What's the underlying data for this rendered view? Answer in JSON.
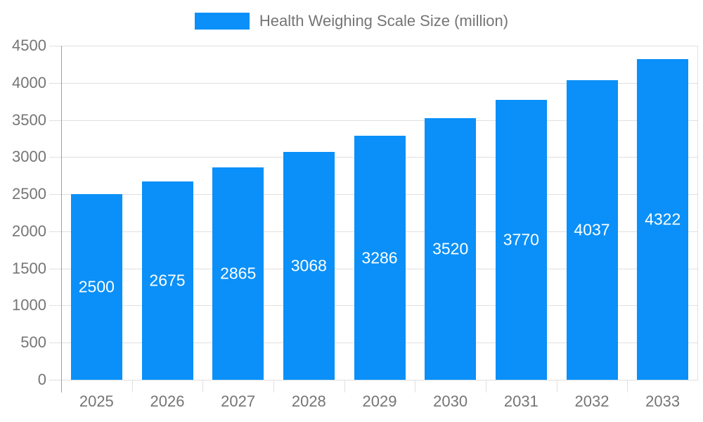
{
  "chart_data": {
    "type": "bar",
    "title": "Health Weighing Scale Size (million)",
    "legend": "Health Weighing Scale Size (million)",
    "legend_position": "top-center",
    "categories": [
      "2025",
      "2026",
      "2027",
      "2028",
      "2029",
      "2030",
      "2031",
      "2032",
      "2033"
    ],
    "values": [
      2500,
      2675,
      2865,
      3068,
      3286,
      3520,
      3770,
      4037,
      4322
    ],
    "xlabel": "",
    "ylabel": "",
    "ylim": [
      0,
      4500
    ],
    "yticks": [
      0,
      500,
      1000,
      1500,
      2000,
      2500,
      3000,
      3500,
      4000,
      4500
    ],
    "grid": true,
    "bar_labels_inside": true,
    "colors": {
      "bar": "#0a90f8",
      "grid": "#e0e0e0",
      "axis_line": "#9e9e9e",
      "axis_text": "#757575",
      "value_label": "#ffffff",
      "background": "#ffffff"
    }
  }
}
